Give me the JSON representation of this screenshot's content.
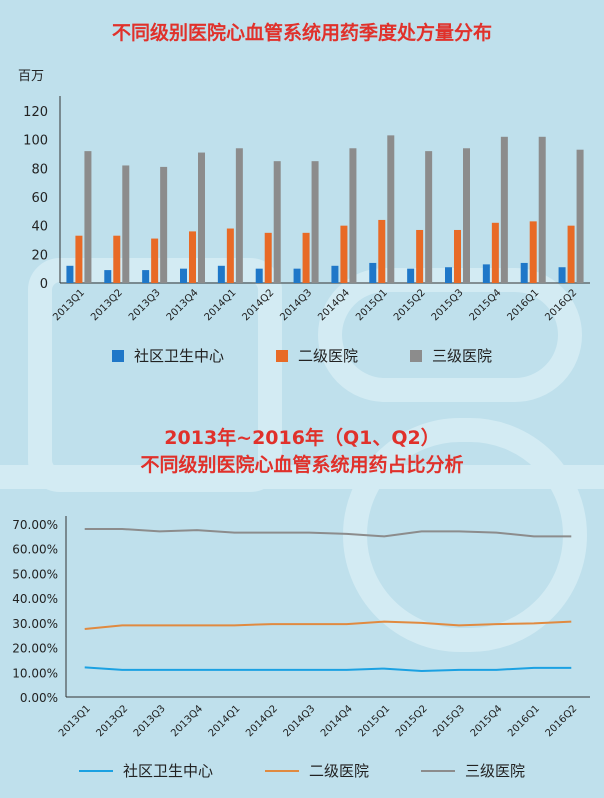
{
  "chart1_title": "不同级别医院心血管系统用药季度处方量分布",
  "chart2_title_line1": "2013年~2016年（Q1、Q2）",
  "chart2_title_line2": "不同级别医院心血管系统用药占比分析",
  "colors": {
    "community": "#1f77c8",
    "secondary": "#e86a26",
    "tertiary": "#8c8c8c",
    "title": "#e0312b"
  },
  "chart_data": [
    {
      "type": "bar",
      "ylabel": "百万",
      "ylim": [
        0,
        120
      ],
      "yticks": [
        0,
        20,
        40,
        60,
        80,
        100,
        120
      ],
      "categories": [
        "2013Q1",
        "2013Q2",
        "2013Q3",
        "2013Q4",
        "2014Q1",
        "2014Q2",
        "2014Q3",
        "2014Q4",
        "2015Q1",
        "2015Q2",
        "2015Q3",
        "2015Q4",
        "2016Q1",
        "2016Q2"
      ],
      "series": [
        {
          "name": "社区卫生中心",
          "values": [
            12,
            9,
            9,
            10,
            12,
            10,
            10,
            12,
            14,
            10,
            11,
            13,
            14,
            11
          ]
        },
        {
          "name": "二级医院",
          "values": [
            33,
            33,
            31,
            36,
            38,
            35,
            35,
            40,
            44,
            37,
            37,
            42,
            43,
            40
          ]
        },
        {
          "name": "三级医院",
          "values": [
            92,
            82,
            81,
            91,
            94,
            85,
            85,
            94,
            103,
            92,
            94,
            102,
            102,
            93
          ]
        }
      ],
      "legend": "bottom"
    },
    {
      "type": "line",
      "ylim": [
        0,
        70
      ],
      "yticks": [
        "0.00%",
        "10.00%",
        "20.00%",
        "30.00%",
        "40.00%",
        "50.00%",
        "60.00%",
        "70.00%"
      ],
      "categories": [
        "2013Q1",
        "2013Q2",
        "2013Q3",
        "2013Q4",
        "2014Q1",
        "2014Q2",
        "2014Q3",
        "2014Q4",
        "2015Q1",
        "2015Q2",
        "2015Q3",
        "2015Q4",
        "2016Q1",
        "2016Q2"
      ],
      "series": [
        {
          "name": "社区卫生中心",
          "values": [
            12.0,
            11.0,
            11.0,
            11.0,
            11.0,
            11.0,
            11.0,
            11.0,
            11.5,
            10.5,
            11.0,
            11.0,
            11.8,
            11.8
          ]
        },
        {
          "name": "二级医院",
          "values": [
            27.5,
            29.0,
            29.0,
            29.0,
            29.0,
            29.5,
            29.5,
            29.5,
            30.5,
            30.0,
            29.0,
            29.5,
            29.8,
            30.5
          ]
        },
        {
          "name": "三级医院",
          "values": [
            68.0,
            68.0,
            67.0,
            67.5,
            66.5,
            66.5,
            66.5,
            66.0,
            65.0,
            67.0,
            67.0,
            66.5,
            65.0,
            65.0
          ]
        }
      ],
      "legend": "bottom"
    }
  ]
}
